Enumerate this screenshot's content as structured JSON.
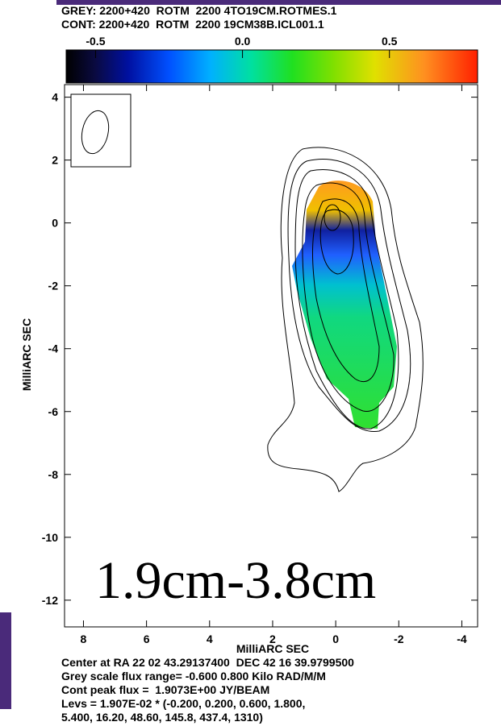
{
  "chart_data": {
    "type": "image",
    "header": [
      "GREY: 2200+420  ROTM  2200 4TO19CM.ROTMES.1",
      "CONT: 2200+420  ROTM  2200 19CM38B.ICL001.1"
    ],
    "colorbar": {
      "lim": [
        -0.6,
        0.8
      ],
      "ticks": [
        -0.5,
        {
          "value": 0,
          "label": "0.0"
        },
        0.5
      ]
    },
    "x_label": "MilliARC SEC",
    "y_label": "MilliARC SEC",
    "xlim": [
      8.6,
      -4.5
    ],
    "xticks": [
      8,
      6,
      4,
      2,
      0,
      -2,
      -4
    ],
    "ylim": [
      -12.85,
      4.4
    ],
    "yticks": [
      4,
      2,
      0,
      -2,
      -4,
      -6,
      -8,
      -10,
      -12
    ],
    "annotation": "1.9cm-3.8cm",
    "footer": [
      "Center at RA 22 02 43.29137400  DEC 42 16 39.9799500",
      "Grey scale flux range= -0.600 0.800 Kilo RAD/M/M",
      "Cont peak flux =  1.9073E+00 JY/BEAM",
      "Levs = 1.907E-02 * (-0.200, 0.200, 0.600, 1.800,",
      "5.400, 16.20, 48.60, 145.8, 437.4, 1310)"
    ]
  }
}
